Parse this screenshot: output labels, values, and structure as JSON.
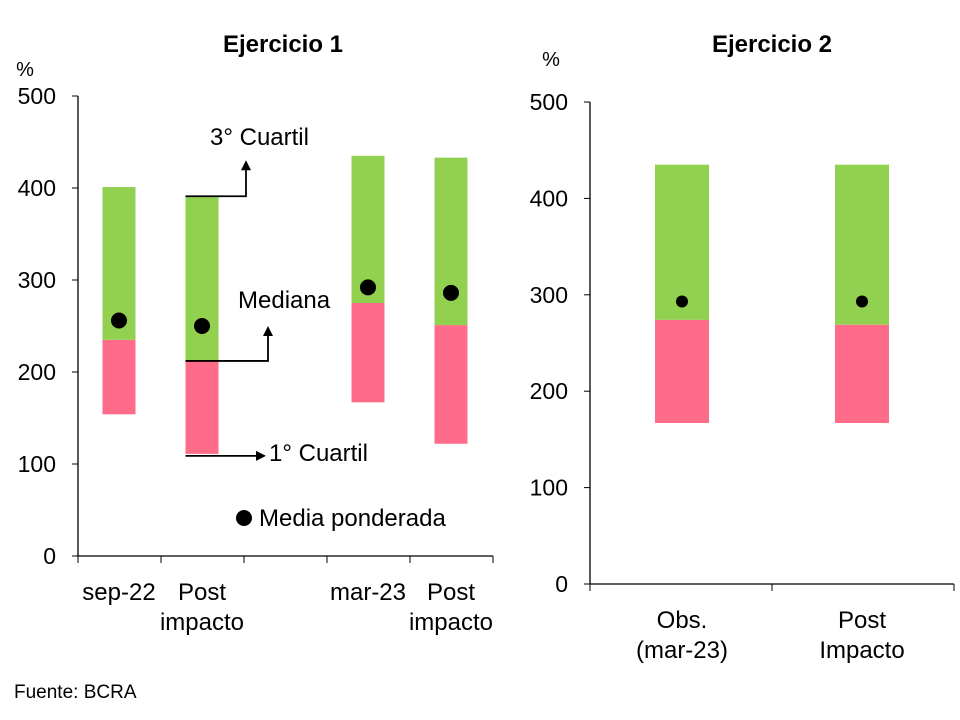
{
  "source": "Fuente: BCRA",
  "colors": {
    "lower": "#FF6C8A",
    "upper": "#92D050",
    "mean": "#000000"
  },
  "chart_data": [
    {
      "type": "bar",
      "subtype": "floating-stacked (quartile range)",
      "title": "Ejercicio 1",
      "ylabel": "%",
      "ylim": [
        0,
        500
      ],
      "yticks": [
        0,
        100,
        200,
        300,
        400,
        500
      ],
      "categories": [
        "sep-22",
        "Post impacto",
        "mar-23",
        "Post impacto"
      ],
      "q1": [
        154,
        111,
        167,
        122
      ],
      "median": [
        235,
        212,
        275,
        251
      ],
      "q3": [
        401,
        391,
        435,
        433
      ],
      "mean": [
        256,
        250,
        292,
        286
      ],
      "annotations": {
        "q3": "3° Cuartil",
        "median": "Mediana",
        "q1": "1° Cuartil",
        "mean": "Media ponderada"
      }
    },
    {
      "type": "bar",
      "subtype": "floating-stacked (quartile range)",
      "title": "Ejercicio 2",
      "ylabel": "%",
      "ylim": [
        0,
        500
      ],
      "yticks": [
        0,
        100,
        200,
        300,
        400,
        500
      ],
      "categories": [
        "Obs. (mar-23)",
        "Post Impacto"
      ],
      "q1": [
        167,
        167
      ],
      "median": [
        274,
        269
      ],
      "q3": [
        435,
        435
      ],
      "mean": [
        293,
        293
      ]
    }
  ]
}
